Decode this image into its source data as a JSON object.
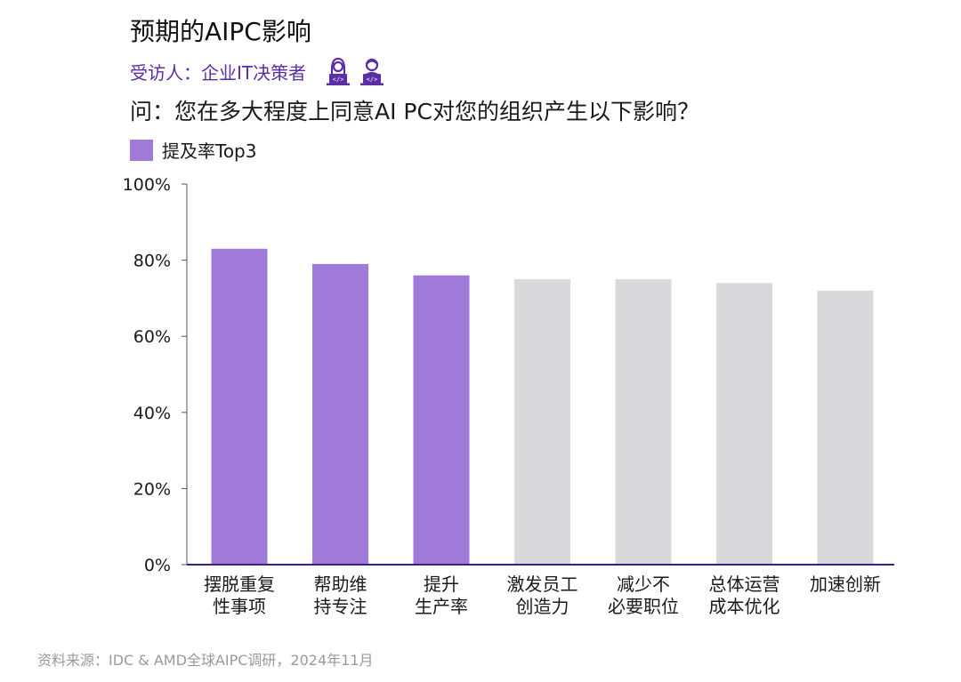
{
  "header": {
    "title": "预期的AIPC影响",
    "respondent": "受访人：企业IT决策者",
    "icons": [
      "female-developer-icon",
      "male-developer-icon"
    ],
    "question": "问：您在多大程度上同意AI PC对您的组织产生以下影响？",
    "legend_label": "提及率Top3"
  },
  "colors": {
    "highlight": "#a07ad8",
    "other": "#d9d9dc",
    "axis": "#3d1f7a",
    "accent_text": "#5b2ea6"
  },
  "chart_data": {
    "type": "bar",
    "title": "预期的AIPC影响",
    "categories": [
      [
        "摆脱重复",
        "性事项"
      ],
      [
        "帮助维",
        "持专注"
      ],
      [
        "提升",
        "生产率"
      ],
      [
        "激发员工",
        "创造力"
      ],
      [
        "减少不",
        "必要职位"
      ],
      [
        "总体运营",
        "成本优化"
      ],
      [
        "加速创新"
      ]
    ],
    "values": [
      83,
      79,
      76,
      75,
      75,
      74,
      72
    ],
    "top3_flags": [
      true,
      true,
      true,
      false,
      false,
      false,
      false
    ],
    "ylim": [
      0,
      100
    ],
    "yticks": [
      0,
      20,
      40,
      60,
      80,
      100
    ],
    "ytick_labels": [
      "0%",
      "20%",
      "40%",
      "60%",
      "80%",
      "100%"
    ],
    "xlabel": "",
    "ylabel": "",
    "legend": [
      {
        "name": "提及率Top3",
        "position": "top-left"
      }
    ]
  },
  "footer": {
    "source": "资料来源：IDC & AMD全球AIPC调研，2024年11月"
  }
}
